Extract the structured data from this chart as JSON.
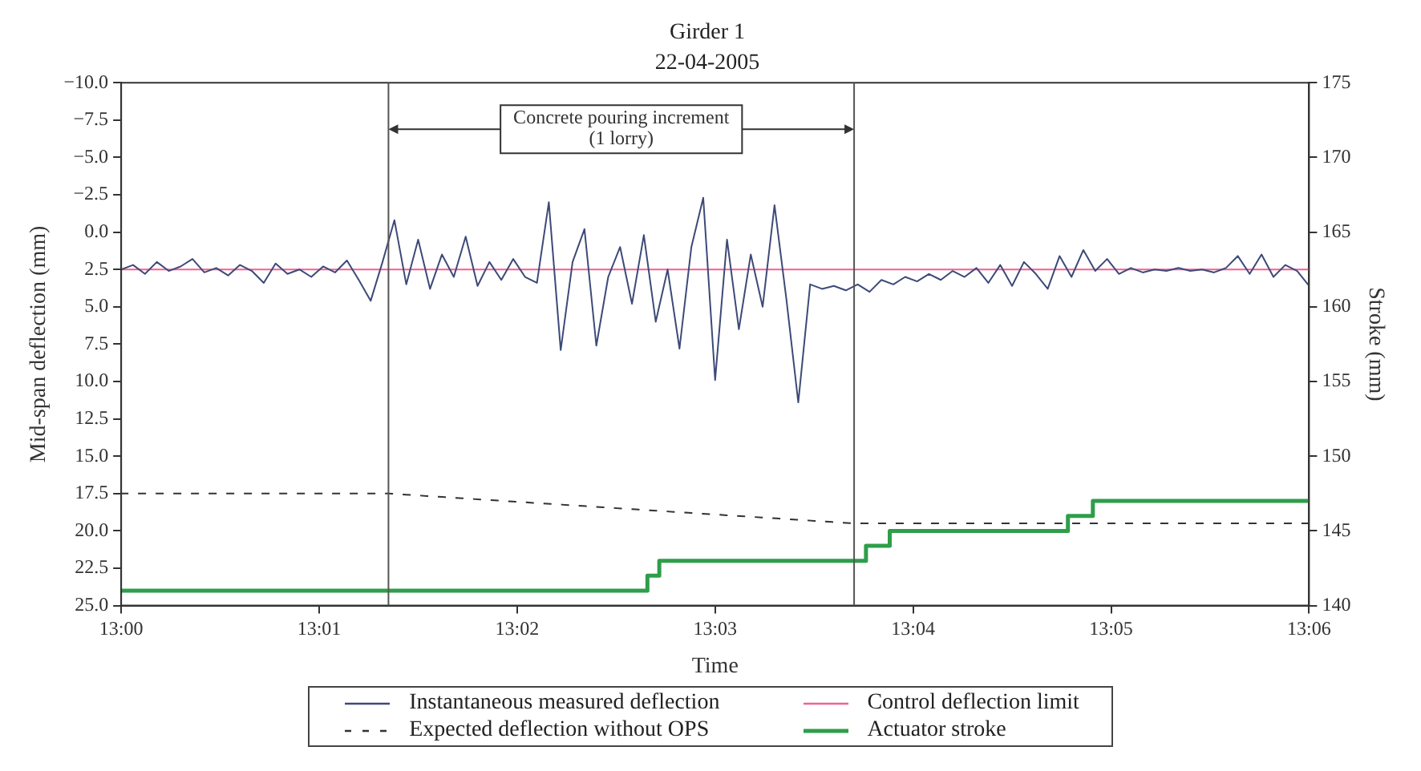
{
  "chart_data": {
    "type": "line",
    "title": "Girder 1",
    "subtitle": "22-04-2005",
    "xlabel": "Time",
    "ylabel": "Mid-span deflection (mm)",
    "y2label": "Stroke (mm)",
    "x": [
      13,
      13.001,
      13.002,
      13.003,
      13.004,
      13.005,
      13.006,
      13.007,
      13.008,
      13.009,
      13.01,
      13.011,
      13.012,
      13.013,
      13.014,
      13.015,
      13.016,
      13.017,
      13.018,
      13.019,
      13.02,
      13.021,
      13.022,
      13.023,
      13.024,
      13.025,
      13.026,
      13.027,
      13.028,
      13.029,
      13.03,
      13.031,
      13.032,
      13.033,
      13.034,
      13.035,
      13.036,
      13.037,
      13.038,
      13.039,
      13.04,
      13.041,
      13.042,
      13.043,
      13.044,
      13.045,
      13.046,
      13.047,
      13.048,
      13.049,
      13.05,
      13.051,
      13.052,
      13.053,
      13.054,
      13.055,
      13.056,
      13.057,
      13.058,
      13.059,
      13.06,
      13.061,
      13.062,
      13.063,
      13.064,
      13.065,
      13.066,
      13.067,
      13.068,
      13.069,
      13.07,
      13.071,
      13.072,
      13.073,
      13.074,
      13.075,
      13.076,
      13.077,
      13.078,
      13.079,
      13.08,
      13.081,
      13.082,
      13.083,
      13.084,
      13.085,
      13.086,
      13.087,
      13.088,
      13.089,
      13.09,
      13.091,
      13.092,
      13.093,
      13.094,
      13.095,
      13.096,
      13.097,
      13.098,
      13.099,
      13.1
    ],
    "series": [
      {
        "name": "Instantaneous measured deflection",
        "color": "#3d4a78",
        "values": [
          2.5,
          2.2,
          2.8,
          2.0,
          2.6,
          2.3,
          1.8,
          2.7,
          2.4,
          2.9,
          2.2,
          2.6,
          3.4,
          2.1,
          2.8,
          2.5,
          3.0,
          2.3,
          2.7,
          1.9,
          3.2,
          4.6,
          2.0,
          -0.8,
          3.5,
          0.5,
          3.8,
          1.5,
          3.0,
          0.3,
          3.6,
          2.0,
          3.2,
          1.8,
          3.0,
          3.4,
          -2.0,
          7.9,
          2.0,
          -0.2,
          7.6,
          3.0,
          1.0,
          4.8,
          0.2,
          6.0,
          2.5,
          7.8,
          1.0,
          -2.3,
          9.9,
          0.5,
          6.5,
          1.5,
          5.0,
          -1.8,
          4.5,
          11.4,
          3.5,
          3.8,
          3.6,
          3.9,
          3.5,
          4.0,
          3.2,
          3.5,
          3.0,
          3.3,
          2.8,
          3.2,
          2.6,
          3.0,
          2.4,
          3.4,
          2.2,
          3.6,
          2.0,
          2.8,
          3.8,
          1.6,
          3.0,
          1.2,
          2.6,
          1.8,
          2.8,
          2.4,
          2.7,
          2.5,
          2.6,
          2.4,
          2.6,
          2.5,
          2.7,
          2.4,
          1.6,
          2.8,
          1.5,
          3.0,
          2.2,
          2.6,
          3.6
        ]
      },
      {
        "name": "Expected deflection without OPS",
        "color": "#333333",
        "line_style": "dashed",
        "x": [
          13,
          13.0225,
          13.0617,
          13.1
        ],
        "values": [
          17.5,
          17.5,
          19.5,
          19.5
        ]
      },
      {
        "name": "Control deflection limit",
        "color": "#f06292",
        "x": [
          13,
          13.1
        ],
        "values": [
          2.5,
          2.5
        ]
      },
      {
        "name": "Actuator stroke",
        "color": "#2e9e4a",
        "type": "step",
        "axis": "y2",
        "x": [
          13,
          13.0443,
          13.0453,
          13.0627,
          13.0647,
          13.0797,
          13.0818,
          13.1
        ],
        "values": [
          141,
          142,
          143,
          144,
          145,
          146,
          147,
          147
        ]
      }
    ],
    "xlim": [
      13,
      13.1
    ],
    "xticks": [
      {
        "value": 13,
        "label": "13:00"
      },
      {
        "value": 13.0166667,
        "label": "13:01"
      },
      {
        "value": 13.0333333,
        "label": "13:02"
      },
      {
        "value": 13.05,
        "label": "13:03"
      },
      {
        "value": 13.0666667,
        "label": "13:04"
      },
      {
        "value": 13.0833333,
        "label": "13:05"
      },
      {
        "value": 13.1,
        "label": "13:06"
      }
    ],
    "ylim": [
      25,
      -10
    ],
    "yticks": [
      {
        "value": -10,
        "label": "−10.0"
      },
      {
        "value": -7.5,
        "label": "−7.5"
      },
      {
        "value": -5,
        "label": "−5.0"
      },
      {
        "value": -2.5,
        "label": "−2.5"
      },
      {
        "value": 0,
        "label": "0.0"
      },
      {
        "value": 2.5,
        "label": "2.5"
      },
      {
        "value": 5,
        "label": "5.0"
      },
      {
        "value": 7.5,
        "label": "7.5"
      },
      {
        "value": 10,
        "label": "10.0"
      },
      {
        "value": 12.5,
        "label": "12.5"
      },
      {
        "value": 15,
        "label": "15.0"
      },
      {
        "value": 17.5,
        "label": "17.5"
      },
      {
        "value": 20,
        "label": "20.0"
      },
      {
        "value": 22.5,
        "label": "22.5"
      },
      {
        "value": 25,
        "label": "25.0"
      }
    ],
    "y2lim": [
      140,
      175
    ],
    "y2ticks": [
      140,
      145,
      150,
      155,
      160,
      165,
      170,
      175
    ],
    "ref_lines": [
      {
        "axis": "x",
        "value": 13.0225,
        "color": "#555555"
      },
      {
        "axis": "x",
        "value": 13.0617,
        "color": "#555555"
      }
    ],
    "annotations": [
      "Concrete pouring increment\n(1 lorry)"
    ],
    "grid": false,
    "legend": "bottom",
    "marker": "none"
  }
}
